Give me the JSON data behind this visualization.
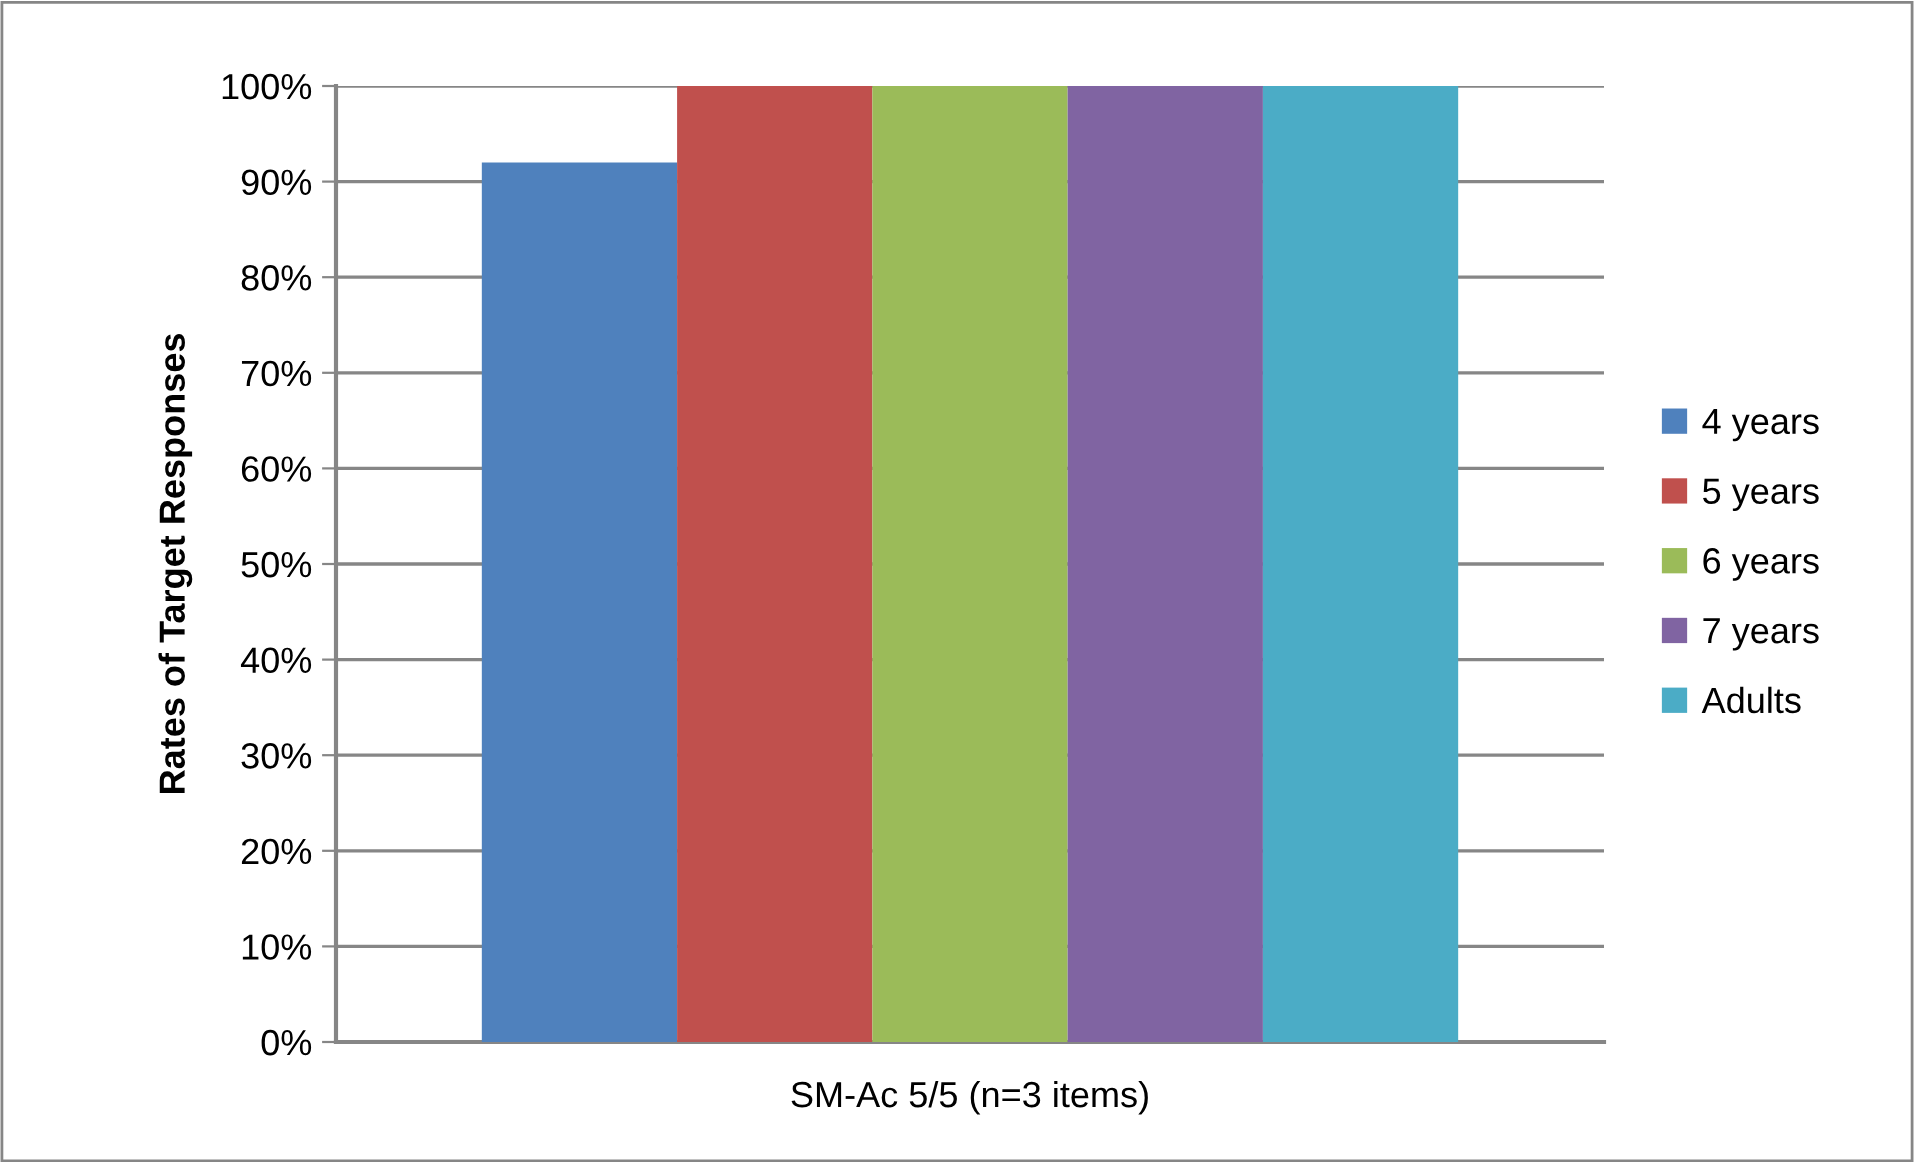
{
  "chart_data": {
    "type": "bar",
    "ylabel": "Rates of Target Responses",
    "categories": [
      "SM-Ac 5/5 (n=3 items)"
    ],
    "series": [
      {
        "name": "4 years",
        "color": "#4f81bd",
        "values": [
          92
        ]
      },
      {
        "name": "5 years",
        "color": "#c0504d",
        "values": [
          100
        ]
      },
      {
        "name": "6 years",
        "color": "#9bbb59",
        "values": [
          100
        ]
      },
      {
        "name": "7 years",
        "color": "#8064a2",
        "values": [
          100
        ]
      },
      {
        "name": "Adults",
        "color": "#4bacc6",
        "values": [
          100
        ]
      }
    ],
    "ylim": [
      0,
      100
    ],
    "yticks": [
      {
        "value": 0,
        "label": "0%"
      },
      {
        "value": 10,
        "label": "10%"
      },
      {
        "value": 20,
        "label": "20%"
      },
      {
        "value": 30,
        "label": "30%"
      },
      {
        "value": 40,
        "label": "40%"
      },
      {
        "value": 50,
        "label": "50%"
      },
      {
        "value": 60,
        "label": "60%"
      },
      {
        "value": 70,
        "label": "70%"
      },
      {
        "value": 80,
        "label": "80%"
      },
      {
        "value": 90,
        "label": "90%"
      },
      {
        "value": 100,
        "label": "100%"
      }
    ],
    "grid": "y",
    "legend": "right"
  }
}
